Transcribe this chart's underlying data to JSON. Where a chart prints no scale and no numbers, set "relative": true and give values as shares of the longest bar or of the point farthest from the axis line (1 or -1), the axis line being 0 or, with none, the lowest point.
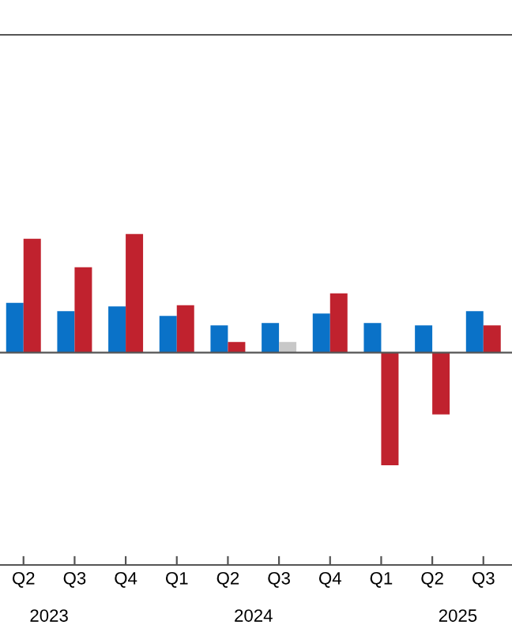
{
  "chart_data": {
    "type": "bar",
    "relative": true,
    "categories": [
      "Q2",
      "Q3",
      "Q4",
      "Q1",
      "Q2",
      "Q3",
      "Q4",
      "Q1",
      "Q2",
      "Q3"
    ],
    "series": [
      {
        "color": "#0a72c8",
        "values": [
          0.42,
          0.35,
          0.39,
          0.31,
          0.23,
          0.25,
          0.33,
          0.25,
          0.23,
          0.35
        ]
      },
      {
        "colors": [
          "#c0222e",
          "#c0222e",
          "#c0222e",
          "#c0222e",
          "#c0222e",
          "#c8c8c8",
          "#c0222e",
          "#c0222e",
          "#c0222e",
          "#c0222e"
        ],
        "values": [
          0.96,
          0.72,
          1,
          0.4,
          0.09,
          0.09,
          0.5,
          -0.95,
          -0.52,
          0.23
        ]
      }
    ],
    "annotations": [
      "2023",
      "2024",
      "2025"
    ],
    "grid": false
  }
}
